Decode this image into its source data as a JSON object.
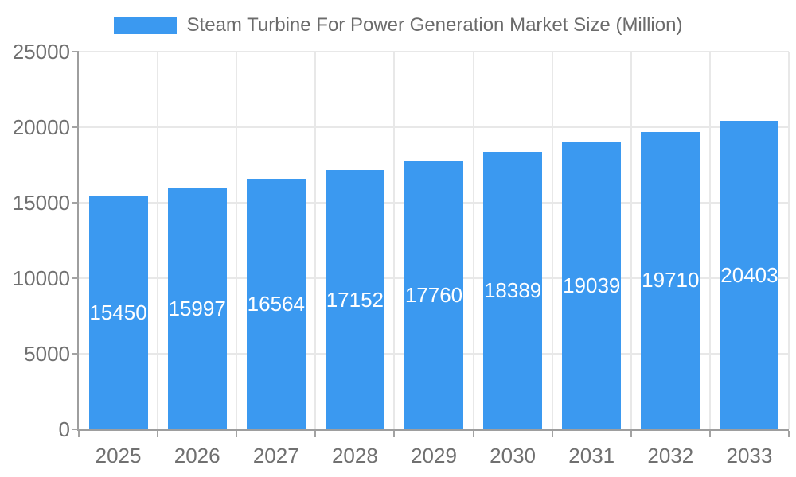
{
  "legend": {
    "position": "top-center",
    "swatch": "series-color-swatch"
  },
  "chart_data": {
    "type": "bar",
    "title": "Steam Turbine For Power Generation Market Size (Million)",
    "categories": [
      "2025",
      "2026",
      "2027",
      "2028",
      "2029",
      "2030",
      "2031",
      "2032",
      "2033"
    ],
    "values": [
      15450,
      15997,
      16564,
      17152,
      17760,
      18389,
      19039,
      19710,
      20403
    ],
    "xlabel": "",
    "ylabel": "",
    "ylim": [
      0,
      25000
    ],
    "yticks": [
      0,
      5000,
      10000,
      15000,
      20000,
      25000
    ],
    "grid": true,
    "legend_position": "top",
    "value_labels": "centered inside bars"
  },
  "colors": {
    "bar": "#3B99F0",
    "grid": "#e8e8e8",
    "axis": "#9e9e9e",
    "tick": "#a3a3a3",
    "tick_text": "#707070",
    "title_text": "#6b6b6b",
    "value_text": "#ffffff",
    "background": "#ffffff"
  }
}
